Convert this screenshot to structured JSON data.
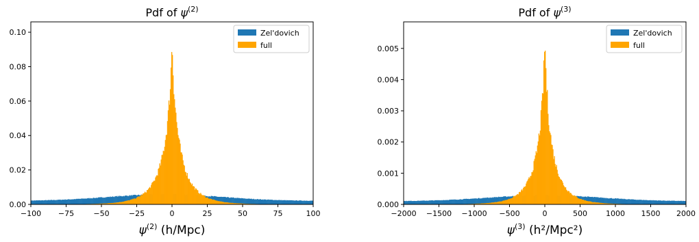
{
  "chart_data": [
    {
      "type": "histogram",
      "title_prefix": "Pdf of ",
      "title_sym": "ψ",
      "title_sup": "(2)",
      "xlabel_sym": "ψ",
      "xlabel_sup": "(2)",
      "xlabel_unit": " (h/Mpc)",
      "xlim": [
        -100,
        100
      ],
      "ylim": [
        0,
        0.106
      ],
      "xticks": [
        -100,
        -75,
        -50,
        -25,
        0,
        25,
        50,
        75,
        100
      ],
      "xtick_labels": [
        "−100",
        "−75",
        "−50",
        "−25",
        "0",
        "25",
        "50",
        "75",
        "100"
      ],
      "yticks": [
        0,
        0.02,
        0.04,
        0.06,
        0.08,
        0.1
      ],
      "ytick_labels": [
        "0.00",
        "0.02",
        "0.04",
        "0.06",
        "0.08",
        "0.10"
      ],
      "legend_position": "upper-right",
      "series": [
        {
          "name": "Zel'dovich",
          "color": "#1f77b4",
          "profile": "gaussian",
          "peak": 0.0058,
          "center": -5,
          "width": 40,
          "edge": 0.002
        },
        {
          "name": "full",
          "color": "#ffa500",
          "profile": "cusp",
          "peak": 0.101,
          "width": 7
        }
      ]
    },
    {
      "type": "histogram",
      "title_prefix": "Pdf of ",
      "title_sym": "ψ",
      "title_sup": "(3)",
      "xlabel_sym": "ψ",
      "xlabel_sup": "(3)",
      "xlabel_unit": " (h²/Mpc²)",
      "xlim": [
        -2000,
        2000
      ],
      "ylim": [
        0,
        0.00585
      ],
      "xticks": [
        -2000,
        -1500,
        -1000,
        -500,
        0,
        500,
        1000,
        1500,
        2000
      ],
      "xtick_labels": [
        "−2000",
        "−1500",
        "−1000",
        "−500",
        "0",
        "500",
        "1000",
        "1500",
        "2000"
      ],
      "yticks": [
        0,
        0.001,
        0.002,
        0.003,
        0.004,
        0.005
      ],
      "ytick_labels": [
        "0.000",
        "0.001",
        "0.002",
        "0.003",
        "0.004",
        "0.005"
      ],
      "legend_position": "upper-right",
      "series": [
        {
          "name": "Zel'dovich",
          "color": "#1f77b4",
          "profile": "gaussian",
          "peak": 0.00029,
          "center": 0,
          "width": 800,
          "edge": 0.0001
        },
        {
          "name": "full",
          "color": "#ffa500",
          "profile": "cusp",
          "peak": 0.0056,
          "width": 130
        }
      ]
    }
  ]
}
